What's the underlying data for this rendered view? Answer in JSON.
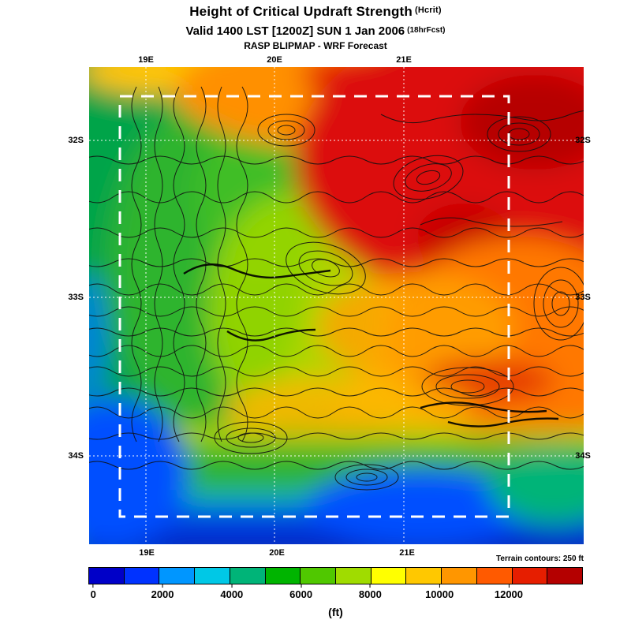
{
  "header": {
    "title": "Height of Critical Updraft Strength",
    "title_suffix": "(Hcrit)",
    "valid_line": "Valid 1400 LST [1200Z] SUN 1 Jan 2006",
    "valid_suffix": "(18hrFcst)",
    "model_line": "RASP BLIPMAP - WRF Forecast"
  },
  "map": {
    "x_ticks": [
      "19E",
      "20E",
      "21E"
    ],
    "y_ticks": [
      "32S",
      "33S",
      "34S"
    ],
    "terrain_note": "Terrain contours: 250 ft"
  },
  "colorbar": {
    "unit": "(ft)",
    "tick_labels": [
      "0",
      "2000",
      "4000",
      "6000",
      "8000",
      "10000",
      "12000"
    ],
    "colors": [
      "#0000c8",
      "#0032ff",
      "#0096ff",
      "#00c8e6",
      "#00b478",
      "#00b400",
      "#50c800",
      "#a0dc00",
      "#ffff00",
      "#ffc800",
      "#ff9600",
      "#ff5a00",
      "#e61e00",
      "#b40000"
    ]
  },
  "chart_data": {
    "type": "heatmap",
    "title": "Height of Critical Updraft Strength (Hcrit)",
    "valid": "Valid 1400 LST [1200Z] SUN 1 Jan 2006 (18hrFcst)",
    "source": "RASP BLIPMAP - WRF Forecast",
    "x_ticks": [
      "19E",
      "20E",
      "21E"
    ],
    "y_ticks": [
      "32S",
      "33S",
      "34S"
    ],
    "colorbar_unit": "ft",
    "colorbar_ticks": [
      0,
      2000,
      4000,
      6000,
      8000,
      10000,
      12000
    ],
    "terrain_contour_interval": "250 ft",
    "pattern_notes": "High values (red, >10000 ft) over northeast interior; mid values (yellow/orange) through center; low values (green/blue, <4000 ft) along west edge and southern coastal strip"
  }
}
